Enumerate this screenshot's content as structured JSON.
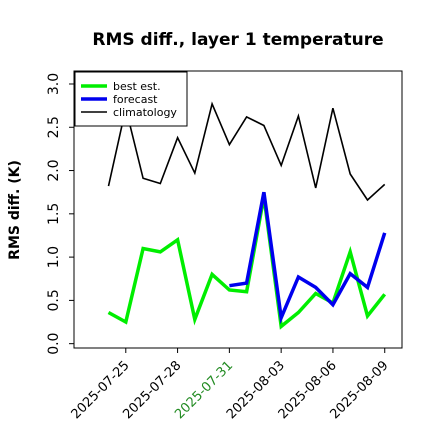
{
  "chart_data": {
    "type": "line",
    "title": "RMS diff., layer 1 temperature",
    "ylabel": "RMS diff. (K)",
    "xlabel": "",
    "ylim": [
      -0.05,
      3.15
    ],
    "xlim": [
      "2025-07-22",
      "2025-08-10"
    ],
    "grid": false,
    "legend_position": "top-left",
    "x_ticks": [
      {
        "date": "2025-07-25",
        "label": "2025-07-25",
        "color": "#000000"
      },
      {
        "date": "2025-07-28",
        "label": "2025-07-28",
        "color": "#000000"
      },
      {
        "date": "2025-07-31",
        "label": "2025-07-31",
        "color": "#228B22"
      },
      {
        "date": "2025-08-03",
        "label": "2025-08-03",
        "color": "#000000"
      },
      {
        "date": "2025-08-06",
        "label": "2025-08-06",
        "color": "#000000"
      },
      {
        "date": "2025-08-09",
        "label": "2025-08-09",
        "color": "#000000"
      }
    ],
    "y_ticks": [
      {
        "value": 0.0,
        "label": "0.0"
      },
      {
        "value": 0.5,
        "label": "0.5"
      },
      {
        "value": 1.0,
        "label": "1.0"
      },
      {
        "value": 1.5,
        "label": "1.5"
      },
      {
        "value": 2.0,
        "label": "2.0"
      },
      {
        "value": 2.5,
        "label": "2.5"
      },
      {
        "value": 3.0,
        "label": "3.0"
      }
    ],
    "series": [
      {
        "name": "best est.",
        "color": "#00ee00",
        "width": 3.5,
        "points": [
          {
            "x": "2025-07-24",
            "y": 0.36
          },
          {
            "x": "2025-07-25",
            "y": 0.25
          },
          {
            "x": "2025-07-26",
            "y": 1.1
          },
          {
            "x": "2025-07-27",
            "y": 1.06
          },
          {
            "x": "2025-07-28",
            "y": 1.2
          },
          {
            "x": "2025-07-29",
            "y": 0.28
          },
          {
            "x": "2025-07-30",
            "y": 0.8
          },
          {
            "x": "2025-07-31",
            "y": 0.62
          },
          {
            "x": "2025-08-01",
            "y": 0.6
          },
          {
            "x": "2025-08-02",
            "y": 1.7
          },
          {
            "x": "2025-08-03",
            "y": 0.2
          },
          {
            "x": "2025-08-04",
            "y": 0.36
          },
          {
            "x": "2025-08-05",
            "y": 0.58
          },
          {
            "x": "2025-08-06",
            "y": 0.47
          },
          {
            "x": "2025-08-07",
            "y": 1.06
          },
          {
            "x": "2025-08-08",
            "y": 0.32
          },
          {
            "x": "2025-08-09",
            "y": 0.57
          }
        ]
      },
      {
        "name": "forecast",
        "color": "#0000ee",
        "width": 3.5,
        "points": [
          {
            "x": "2025-07-31",
            "y": 0.67
          },
          {
            "x": "2025-08-01",
            "y": 0.7
          },
          {
            "x": "2025-08-02",
            "y": 1.75
          },
          {
            "x": "2025-08-03",
            "y": 0.3
          },
          {
            "x": "2025-08-04",
            "y": 0.77
          },
          {
            "x": "2025-08-05",
            "y": 0.65
          },
          {
            "x": "2025-08-06",
            "y": 0.45
          },
          {
            "x": "2025-08-07",
            "y": 0.81
          },
          {
            "x": "2025-08-08",
            "y": 0.65
          },
          {
            "x": "2025-08-09",
            "y": 1.28
          }
        ]
      },
      {
        "name": "climatology",
        "color": "#000000",
        "width": 1.6,
        "points": [
          {
            "x": "2025-07-24",
            "y": 1.82
          },
          {
            "x": "2025-07-25",
            "y": 2.72
          },
          {
            "x": "2025-07-26",
            "y": 1.91
          },
          {
            "x": "2025-07-27",
            "y": 1.85
          },
          {
            "x": "2025-07-28",
            "y": 2.38
          },
          {
            "x": "2025-07-29",
            "y": 1.97
          },
          {
            "x": "2025-07-30",
            "y": 2.77
          },
          {
            "x": "2025-07-31",
            "y": 2.3
          },
          {
            "x": "2025-08-01",
            "y": 2.62
          },
          {
            "x": "2025-08-02",
            "y": 2.52
          },
          {
            "x": "2025-08-03",
            "y": 2.06
          },
          {
            "x": "2025-08-04",
            "y": 2.63
          },
          {
            "x": "2025-08-05",
            "y": 1.8
          },
          {
            "x": "2025-08-06",
            "y": 2.72
          },
          {
            "x": "2025-08-07",
            "y": 1.96
          },
          {
            "x": "2025-08-08",
            "y": 1.66
          },
          {
            "x": "2025-08-09",
            "y": 1.84
          }
        ]
      }
    ]
  }
}
